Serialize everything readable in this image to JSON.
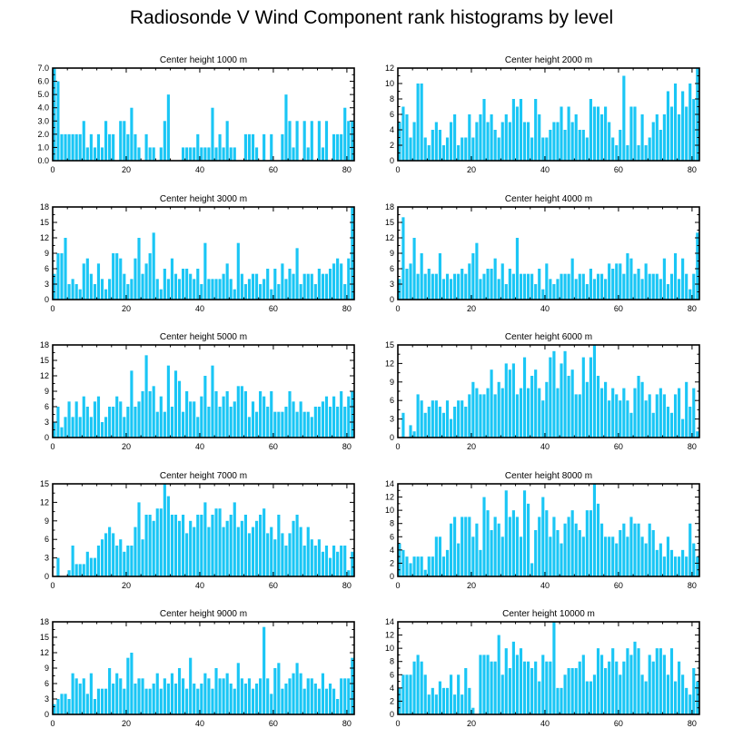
{
  "title": "Radiosonde V Wind Component rank histograms by level",
  "colors": {
    "bar": "#1ac6f5",
    "frame": "#000000",
    "background": "#ffffff"
  },
  "chart_data": [
    {
      "type": "bar",
      "title": "Center height 1000 m",
      "xlim": [
        0,
        82
      ],
      "ylim": [
        0,
        7
      ],
      "xticks": [
        "0",
        "20",
        "40",
        "60",
        "80"
      ],
      "yticks": [
        "0.0",
        "1.0",
        "2.0",
        "3.0",
        "4.0",
        "5.0",
        "6.0",
        "7.0"
      ],
      "values": [
        7,
        6,
        2,
        2,
        2,
        2,
        2,
        2,
        3,
        1,
        2,
        1,
        2,
        1,
        3,
        2,
        2,
        0,
        3,
        3,
        2,
        4,
        2,
        1,
        0,
        2,
        1,
        1,
        0,
        1,
        3,
        5,
        0,
        0,
        0,
        1,
        1,
        1,
        1,
        2,
        1,
        1,
        1,
        4,
        1,
        2,
        1,
        3,
        1,
        1,
        0,
        0,
        2,
        2,
        2,
        1,
        0,
        2,
        0,
        2,
        0,
        0,
        2,
        5,
        3,
        1,
        3,
        0,
        3,
        1,
        3,
        0,
        3,
        1,
        3,
        0,
        2,
        2,
        2,
        4,
        3,
        3
      ]
    },
    {
      "type": "bar",
      "title": "Center height 2000 m",
      "xlim": [
        0,
        82
      ],
      "ylim": [
        0,
        12
      ],
      "xticks": [
        "0",
        "20",
        "40",
        "60",
        "80"
      ],
      "yticks": [
        "0",
        "2",
        "4",
        "6",
        "8",
        "10",
        "12"
      ],
      "values": [
        5,
        7,
        6,
        3,
        5,
        10,
        10,
        3,
        2,
        4,
        5,
        4,
        2,
        3,
        5,
        6,
        2,
        3,
        3,
        6,
        3,
        5,
        6,
        8,
        5,
        6,
        4,
        3,
        5,
        6,
        5,
        8,
        7,
        8,
        5,
        5,
        3,
        8,
        6,
        3,
        3,
        4,
        5,
        5,
        7,
        4,
        7,
        5,
        6,
        4,
        4,
        3,
        8,
        7,
        7,
        6,
        7,
        5,
        3,
        2,
        4,
        11,
        2,
        7,
        7,
        2,
        6,
        2,
        3,
        5,
        6,
        4,
        6,
        9,
        7,
        10,
        6,
        9,
        7,
        10,
        8,
        12
      ]
    },
    {
      "type": "bar",
      "title": "Center height 3000 m",
      "xlim": [
        0,
        82
      ],
      "ylim": [
        0,
        18
      ],
      "xticks": [
        "0",
        "20",
        "40",
        "60",
        "80"
      ],
      "yticks": [
        "0",
        "3",
        "6",
        "9",
        "12",
        "15",
        "18"
      ],
      "values": [
        5,
        9,
        9,
        12,
        3,
        4,
        3,
        2,
        7,
        8,
        5,
        3,
        7,
        4,
        2,
        4,
        9,
        9,
        8,
        5,
        3,
        4,
        8,
        12,
        5,
        7,
        9,
        13,
        4,
        2,
        6,
        4,
        8,
        5,
        4,
        6,
        6,
        5,
        4,
        6,
        3,
        11,
        4,
        4,
        4,
        4,
        5,
        7,
        4,
        2,
        11,
        5,
        3,
        4,
        5,
        5,
        3,
        4,
        6,
        2,
        6,
        3,
        7,
        4,
        6,
        5,
        10,
        3,
        5,
        5,
        5,
        3,
        6,
        5,
        5,
        6,
        7,
        8,
        7,
        3,
        8,
        18
      ]
    },
    {
      "type": "bar",
      "title": "Center height 4000 m",
      "xlim": [
        0,
        82
      ],
      "ylim": [
        0,
        18
      ],
      "xticks": [
        "0",
        "20",
        "40",
        "60",
        "80"
      ],
      "yticks": [
        "0",
        "3",
        "6",
        "9",
        "12",
        "15",
        "18"
      ],
      "values": [
        4,
        16,
        6,
        7,
        12,
        5,
        9,
        5,
        6,
        5,
        5,
        9,
        4,
        5,
        4,
        5,
        5,
        6,
        5,
        7,
        9,
        11,
        4,
        5,
        6,
        6,
        8,
        4,
        7,
        3,
        6,
        5,
        12,
        5,
        5,
        5,
        5,
        3,
        6,
        2,
        7,
        4,
        3,
        4,
        5,
        5,
        5,
        8,
        4,
        5,
        5,
        3,
        6,
        4,
        5,
        5,
        4,
        7,
        6,
        7,
        7,
        5,
        9,
        8,
        5,
        6,
        4,
        7,
        5,
        5,
        5,
        4,
        8,
        3,
        5,
        9,
        4,
        8,
        5,
        2,
        5,
        13
      ]
    },
    {
      "type": "bar",
      "title": "Center height 5000 m",
      "xlim": [
        0,
        82
      ],
      "ylim": [
        0,
        18
      ],
      "xticks": [
        "0",
        "20",
        "40",
        "60",
        "80"
      ],
      "yticks": [
        "0",
        "3",
        "6",
        "9",
        "12",
        "15",
        "18"
      ],
      "values": [
        3,
        6,
        2,
        4,
        7,
        4,
        7,
        4,
        8,
        6,
        4,
        7,
        8,
        3,
        4,
        6,
        6,
        8,
        7,
        4,
        6,
        13,
        6,
        7,
        9,
        16,
        9,
        10,
        5,
        8,
        5,
        14,
        6,
        13,
        11,
        5,
        9,
        7,
        7,
        4,
        8,
        12,
        6,
        14,
        9,
        6,
        8,
        9,
        6,
        7,
        10,
        10,
        9,
        4,
        7,
        5,
        9,
        8,
        6,
        9,
        5,
        5,
        5,
        6,
        9,
        7,
        5,
        7,
        5,
        5,
        4,
        6,
        6,
        7,
        8,
        6,
        8,
        6,
        9,
        6,
        8,
        9
      ]
    },
    {
      "type": "bar",
      "title": "Center height 6000 m",
      "xlim": [
        0,
        82
      ],
      "ylim": [
        0,
        15
      ],
      "xticks": [
        "0",
        "20",
        "40",
        "60",
        "80"
      ],
      "yticks": [
        "0",
        "3",
        "6",
        "9",
        "12",
        "15"
      ],
      "values": [
        0,
        4,
        0,
        2,
        1,
        7,
        6,
        4,
        5,
        6,
        6,
        5,
        4,
        6,
        3,
        5,
        6,
        6,
        5,
        7,
        9,
        8,
        7,
        7,
        8,
        11,
        7,
        9,
        8,
        12,
        11,
        12,
        7,
        8,
        13,
        8,
        10,
        11,
        8,
        6,
        9,
        13,
        14,
        8,
        12,
        14,
        10,
        11,
        7,
        7,
        13,
        9,
        13,
        15,
        10,
        8,
        9,
        6,
        8,
        7,
        6,
        8,
        6,
        4,
        8,
        10,
        9,
        6,
        7,
        4,
        7,
        8,
        7,
        5,
        4,
        7,
        8,
        3,
        9,
        5,
        8,
        1
      ]
    },
    {
      "type": "bar",
      "title": "Center height 7000 m",
      "xlim": [
        0,
        82
      ],
      "ylim": [
        0,
        15
      ],
      "xticks": [
        "0",
        "20",
        "40",
        "60",
        "80"
      ],
      "yticks": [
        "0",
        "3",
        "6",
        "9",
        "12",
        "15"
      ],
      "values": [
        0,
        3,
        0,
        0,
        1,
        5,
        2,
        2,
        2,
        4,
        3,
        3,
        5,
        6,
        7,
        8,
        7,
        5,
        6,
        4,
        5,
        5,
        8,
        12,
        6,
        10,
        10,
        9,
        11,
        11,
        15,
        13,
        10,
        10,
        9,
        10,
        7,
        9,
        8,
        10,
        10,
        12,
        8,
        10,
        11,
        11,
        8,
        9,
        10,
        12,
        8,
        9,
        10,
        7,
        8,
        9,
        10,
        11,
        7,
        8,
        6,
        10,
        7,
        5,
        7,
        9,
        10,
        8,
        5,
        8,
        6,
        5,
        6,
        4,
        5,
        3,
        5,
        4,
        5,
        5,
        1,
        4
      ]
    },
    {
      "type": "bar",
      "title": "Center height 8000 m",
      "xlim": [
        0,
        82
      ],
      "ylim": [
        0,
        14
      ],
      "xticks": [
        "0",
        "20",
        "40",
        "60",
        "80"
      ],
      "yticks": [
        "0",
        "2",
        "4",
        "6",
        "8",
        "10",
        "12",
        "14"
      ],
      "values": [
        5,
        4,
        3,
        2,
        3,
        3,
        3,
        1,
        3,
        3,
        6,
        6,
        3,
        4,
        8,
        9,
        5,
        9,
        9,
        9,
        6,
        8,
        4,
        12,
        10,
        7,
        9,
        8,
        6,
        13,
        9,
        10,
        9,
        6,
        13,
        11,
        2,
        7,
        9,
        12,
        10,
        6,
        9,
        7,
        5,
        8,
        9,
        10,
        8,
        7,
        6,
        10,
        10,
        14,
        11,
        8,
        6,
        6,
        6,
        5,
        7,
        8,
        6,
        9,
        8,
        8,
        6,
        5,
        8,
        7,
        4,
        5,
        3,
        6,
        4,
        3,
        3,
        4,
        3,
        8,
        5,
        3
      ]
    },
    {
      "type": "bar",
      "title": "Center height 9000 m",
      "xlim": [
        0,
        82
      ],
      "ylim": [
        0,
        18
      ],
      "xticks": [
        "0",
        "20",
        "40",
        "60",
        "80"
      ],
      "yticks": [
        "0",
        "3",
        "6",
        "9",
        "12",
        "15",
        "18"
      ],
      "values": [
        2,
        3,
        4,
        4,
        3,
        8,
        7,
        6,
        7,
        4,
        8,
        3,
        5,
        5,
        5,
        9,
        6,
        8,
        7,
        5,
        11,
        12,
        6,
        7,
        7,
        5,
        5,
        6,
        8,
        5,
        7,
        6,
        8,
        6,
        9,
        7,
        5,
        11,
        6,
        5,
        6,
        8,
        7,
        5,
        9,
        7,
        7,
        8,
        6,
        5,
        10,
        7,
        6,
        7,
        5,
        6,
        7,
        17,
        7,
        4,
        9,
        10,
        5,
        6,
        7,
        8,
        10,
        8,
        5,
        7,
        7,
        6,
        5,
        8,
        5,
        6,
        5,
        3,
        7,
        7,
        7,
        11
      ]
    },
    {
      "type": "bar",
      "title": "Center height 10000 m",
      "xlim": [
        0,
        82
      ],
      "ylim": [
        0,
        14
      ],
      "xticks": [
        "0",
        "20",
        "40",
        "60",
        "80"
      ],
      "yticks": [
        "0",
        "2",
        "4",
        "6",
        "8",
        "10",
        "12",
        "14"
      ],
      "values": [
        4,
        6,
        6,
        6,
        8,
        9,
        8,
        6,
        3,
        4,
        3,
        5,
        4,
        4,
        6,
        3,
        6,
        3,
        7,
        4,
        1,
        0,
        9,
        9,
        9,
        8,
        8,
        12,
        6,
        10,
        7,
        11,
        9,
        10,
        8,
        8,
        7,
        8,
        5,
        9,
        8,
        8,
        14,
        4,
        4,
        6,
        7,
        7,
        7,
        8,
        9,
        5,
        5,
        6,
        10,
        9,
        7,
        8,
        10,
        8,
        6,
        8,
        10,
        9,
        11,
        10,
        6,
        5,
        9,
        8,
        10,
        10,
        9,
        6,
        10,
        5,
        8,
        6,
        4,
        3,
        7,
        5
      ]
    }
  ]
}
